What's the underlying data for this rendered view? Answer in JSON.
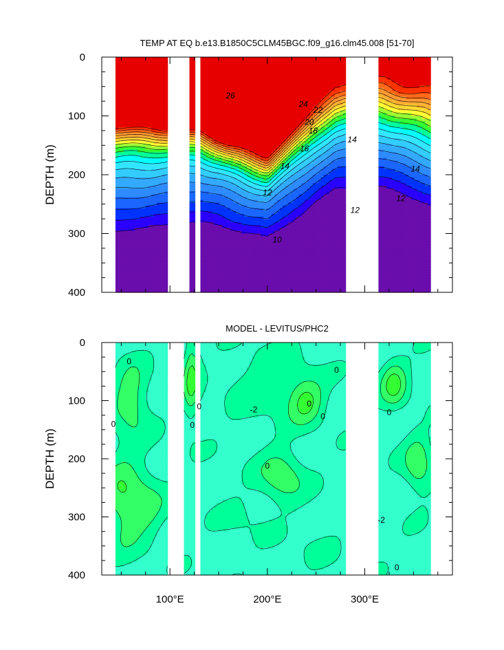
{
  "colors": {
    "background": "#ffffff",
    "temp_levels": [
      "#6a0dad",
      "#2a00ff",
      "#0033ff",
      "#1a66ff",
      "#2e8bff",
      "#33aaff",
      "#33ccff",
      "#33e6ff",
      "#00ffff",
      "#00ff99",
      "#33ff33",
      "#99ff33",
      "#ffff33",
      "#ffd633",
      "#ffb033",
      "#ff9933",
      "#ff6a1a",
      "#ff3300",
      "#e60000"
    ],
    "diff_levels": [
      "#33ffcc",
      "#00ff99",
      "#33ff66",
      "#33ff33"
    ]
  },
  "chart_data": [
    {
      "id": "temp-panel",
      "type": "contour",
      "title": "TEMP AT EQ b.e13.B1850C5CLM45BGC.f09_g16.clm45.008 [51-70]",
      "xlabel": "",
      "ylabel": "DEPTH (m)",
      "xlim": [
        30,
        390
      ],
      "ylim": [
        400,
        0
      ],
      "yticks": [
        {
          "v": 0,
          "label": "0"
        },
        {
          "v": 100,
          "label": "100"
        },
        {
          "v": 200,
          "label": "200"
        },
        {
          "v": 300,
          "label": "300"
        },
        {
          "v": 400,
          "label": "400"
        }
      ],
      "xticks": [
        {
          "v": 100,
          "label": "",
          "major": true
        },
        {
          "v": 200,
          "label": "",
          "major": true
        },
        {
          "v": 300,
          "label": "",
          "major": true
        }
      ],
      "minor_x": [
        50,
        75,
        125,
        150,
        175,
        225,
        250,
        275,
        325,
        350,
        375
      ],
      "minor_y": [
        25,
        50,
        75,
        125,
        150,
        175,
        225,
        250,
        275,
        325,
        350,
        375
      ],
      "fill_ranges": [
        [
          43,
          97
        ],
        [
          120,
          126
        ],
        [
          131,
          279
        ],
        [
          315,
          368
        ]
      ],
      "levels_lo": 2,
      "levels_step": 1,
      "field": {
        "type": "temp",
        "sst": [
          [
            40,
            29
          ],
          [
            100,
            29.5
          ],
          [
            150,
            29.5
          ],
          [
            200,
            27.5
          ],
          [
            250,
            26
          ],
          [
            280,
            25
          ],
          [
            320,
            25
          ],
          [
            370,
            25
          ]
        ],
        "thermocline": [
          [
            40,
            115
          ],
          [
            90,
            120
          ],
          [
            130,
            125
          ],
          [
            160,
            150
          ],
          [
            200,
            175
          ],
          [
            240,
            115
          ],
          [
            270,
            65
          ],
          [
            290,
            50
          ],
          [
            320,
            55
          ],
          [
            340,
            60
          ],
          [
            370,
            70
          ]
        ],
        "width": [
          [
            40,
            42
          ],
          [
            100,
            42
          ],
          [
            160,
            40
          ],
          [
            240,
            50
          ],
          [
            270,
            60
          ],
          [
            320,
            70
          ],
          [
            370,
            80
          ]
        ],
        "deep": [
          [
            40,
            13
          ],
          [
            100,
            12
          ],
          [
            150,
            11
          ],
          [
            200,
            10.5
          ],
          [
            250,
            11
          ],
          [
            280,
            12
          ],
          [
            320,
            12
          ],
          [
            370,
            13
          ]
        ],
        "k": 0.0055,
        "sub_dip": [
          150,
          230,
          1.5
        ]
      },
      "contour_labels": [
        {
          "text": "26",
          "x": 162,
          "y": 70
        },
        {
          "text": "24",
          "x": 237,
          "y": 85
        },
        {
          "text": "22",
          "x": 252,
          "y": 95
        },
        {
          "text": "20",
          "x": 243,
          "y": 115
        },
        {
          "text": "18",
          "x": 247,
          "y": 130
        },
        {
          "text": "16",
          "x": 238,
          "y": 160
        },
        {
          "text": "14",
          "x": 218,
          "y": 190
        },
        {
          "text": "14",
          "x": 287,
          "y": 145
        },
        {
          "text": "14",
          "x": 352,
          "y": 195
        },
        {
          "text": "12",
          "x": 200,
          "y": 235
        },
        {
          "text": "12",
          "x": 290,
          "y": 265
        },
        {
          "text": "12",
          "x": 337,
          "y": 245
        },
        {
          "text": "10",
          "x": 210,
          "y": 315
        }
      ]
    },
    {
      "id": "diff-panel",
      "type": "contour",
      "title": "MODEL - LEVITUS/PHC2",
      "xlabel": "",
      "ylabel": "DEPTH (m)",
      "xlim": [
        30,
        390
      ],
      "ylim": [
        400,
        0
      ],
      "yticks": [
        {
          "v": 0,
          "label": "0"
        },
        {
          "v": 100,
          "label": "100"
        },
        {
          "v": 200,
          "label": "200"
        },
        {
          "v": 300,
          "label": "300"
        },
        {
          "v": 400,
          "label": "400"
        }
      ],
      "xticks": [
        {
          "v": 100,
          "label": "100°E",
          "major": true
        },
        {
          "v": 200,
          "label": "200°E",
          "major": true
        },
        {
          "v": 300,
          "label": "300°E",
          "major": true
        }
      ],
      "minor_x": [
        50,
        75,
        125,
        150,
        175,
        225,
        250,
        275,
        325,
        350,
        375
      ],
      "minor_y": [
        25,
        50,
        75,
        125,
        150,
        175,
        225,
        250,
        275,
        325,
        350,
        375
      ],
      "fill_ranges": [
        [
          43,
          97
        ],
        [
          115,
          125
        ],
        [
          131,
          279
        ],
        [
          313,
          368
        ]
      ],
      "levels_lo": -3,
      "levels_step": 1,
      "field": {
        "type": "diff",
        "base": -2.4,
        "blobs": [
          [
            60,
            100,
            18,
            60,
            2.2
          ],
          [
            50,
            270,
            20,
            80,
            2.0
          ],
          [
            75,
            280,
            20,
            60,
            1.6
          ],
          [
            122,
            60,
            8,
            70,
            2.6
          ],
          [
            240,
            100,
            18,
            40,
            2.4
          ],
          [
            215,
            230,
            22,
            45,
            2.2
          ],
          [
            200,
            70,
            40,
            60,
            1.2
          ],
          [
            330,
            70,
            14,
            40,
            2.6
          ],
          [
            355,
            210,
            14,
            50,
            2.2
          ],
          [
            175,
            300,
            25,
            40,
            0.6
          ],
          [
            250,
            350,
            30,
            40,
            0.4
          ]
        ]
      },
      "contour_labels": [
        {
          "text": "0",
          "x": 58,
          "y": 37
        },
        {
          "text": "0",
          "x": 42,
          "y": 145
        },
        {
          "text": "0",
          "x": 123,
          "y": 147
        },
        {
          "text": "0",
          "x": 130,
          "y": 115
        },
        {
          "text": "-2",
          "x": 186,
          "y": 120
        },
        {
          "text": "0",
          "x": 243,
          "y": 110
        },
        {
          "text": "0",
          "x": 257,
          "y": 132
        },
        {
          "text": "0",
          "x": 271,
          "y": 52
        },
        {
          "text": "0",
          "x": 200,
          "y": 217
        },
        {
          "text": "0",
          "x": 325,
          "y": 125
        },
        {
          "text": "-2",
          "x": 317,
          "y": 310
        },
        {
          "text": "0",
          "x": 333,
          "y": 392
        }
      ]
    }
  ]
}
